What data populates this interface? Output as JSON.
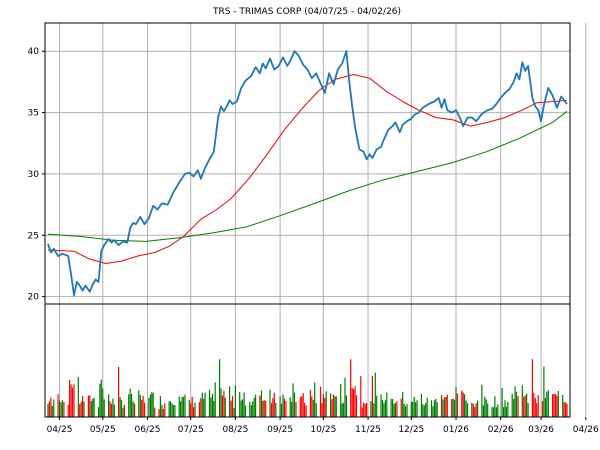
{
  "chart_data": {
    "type": "line",
    "title": "TRS - TRIMAS CORP (04/07/25 - 04/02/26)",
    "price_axis": {
      "ylim": [
        19.4,
        42.3
      ],
      "ticks": [
        20,
        25,
        30,
        35,
        40
      ],
      "tick_labels": [
        "20",
        "25",
        "30",
        "35",
        "40"
      ],
      "grid": true
    },
    "x_ticks": [
      "04/25",
      "05/25",
      "06/25",
      "07/25",
      "08/25",
      "09/25",
      "10/25",
      "11/25",
      "12/25",
      "01/26",
      "02/26",
      "03/26",
      "04/26"
    ],
    "x_tick_dates": [
      "2025-04-15",
      "2025-05-15",
      "2025-06-15",
      "2025-07-15",
      "2025-08-15",
      "2025-09-15",
      "2025-10-15",
      "2025-11-15",
      "2025-12-15",
      "2026-01-15",
      "2026-02-15",
      "2026-03-15",
      "2026-04-15"
    ],
    "date_range": [
      "2025-04-07",
      "2026-04-02"
    ],
    "colors": {
      "price": "#1f77b4",
      "ma_short": "#ff0000",
      "ma_long": "#008000",
      "volume_up": "#008000",
      "volume_down": "#ff0000",
      "grid": "#b0b0b0"
    },
    "series": [
      {
        "key": "price",
        "points": [
          [
            "2025-04-07",
            24.3
          ],
          [
            "2025-04-09",
            23.6
          ],
          [
            "2025-04-11",
            23.9
          ],
          [
            "2025-04-14",
            23.3
          ],
          [
            "2025-04-17",
            23.5
          ],
          [
            "2025-04-21",
            23.3
          ],
          [
            "2025-04-23",
            21.8
          ],
          [
            "2025-04-25",
            20.1
          ],
          [
            "2025-04-27",
            21.2
          ],
          [
            "2025-04-29",
            20.9
          ],
          [
            "2025-05-01",
            20.5
          ],
          [
            "2025-05-03",
            20.9
          ],
          [
            "2025-05-06",
            20.4
          ],
          [
            "2025-05-08",
            21.0
          ],
          [
            "2025-05-10",
            21.4
          ],
          [
            "2025-05-12",
            21.2
          ],
          [
            "2025-05-14",
            23.7
          ],
          [
            "2025-05-16",
            24.2
          ],
          [
            "2025-05-19",
            24.7
          ],
          [
            "2025-05-21",
            24.4
          ],
          [
            "2025-05-23",
            24.6
          ],
          [
            "2025-05-26",
            24.2
          ],
          [
            "2025-05-29",
            24.5
          ],
          [
            "2025-06-01",
            24.4
          ],
          [
            "2025-06-03",
            25.6
          ],
          [
            "2025-06-05",
            26.0
          ],
          [
            "2025-06-07",
            25.9
          ],
          [
            "2025-06-10",
            26.5
          ],
          [
            "2025-06-13",
            25.9
          ],
          [
            "2025-06-16",
            26.4
          ],
          [
            "2025-06-19",
            27.4
          ],
          [
            "2025-06-22",
            27.1
          ],
          [
            "2025-06-25",
            27.6
          ],
          [
            "2025-06-29",
            27.5
          ],
          [
            "2025-07-03",
            28.5
          ],
          [
            "2025-07-07",
            29.3
          ],
          [
            "2025-07-11",
            30.0
          ],
          [
            "2025-07-14",
            30.1
          ],
          [
            "2025-07-17",
            29.8
          ],
          [
            "2025-07-20",
            30.3
          ],
          [
            "2025-07-22",
            29.6
          ],
          [
            "2025-07-25",
            30.5
          ],
          [
            "2025-07-28",
            31.2
          ],
          [
            "2025-07-31",
            31.8
          ],
          [
            "2025-08-03",
            34.6
          ],
          [
            "2025-08-05",
            35.5
          ],
          [
            "2025-08-07",
            35.1
          ],
          [
            "2025-08-09",
            35.5
          ],
          [
            "2025-08-11",
            36.0
          ],
          [
            "2025-08-13",
            35.7
          ],
          [
            "2025-08-16",
            35.9
          ],
          [
            "2025-08-19",
            37.0
          ],
          [
            "2025-08-22",
            37.6
          ],
          [
            "2025-08-26",
            38.0
          ],
          [
            "2025-08-29",
            38.7
          ],
          [
            "2025-09-01",
            38.2
          ],
          [
            "2025-09-03",
            39.0
          ],
          [
            "2025-09-05",
            38.6
          ],
          [
            "2025-09-08",
            39.4
          ],
          [
            "2025-09-11",
            38.5
          ],
          [
            "2025-09-14",
            38.8
          ],
          [
            "2025-09-17",
            39.5
          ],
          [
            "2025-09-20",
            38.8
          ],
          [
            "2025-09-22",
            39.2
          ],
          [
            "2025-09-25",
            40.0
          ],
          [
            "2025-09-28",
            39.6
          ],
          [
            "2025-10-01",
            38.9
          ],
          [
            "2025-10-04",
            38.5
          ],
          [
            "2025-10-07",
            37.8
          ],
          [
            "2025-10-10",
            38.2
          ],
          [
            "2025-10-13",
            37.4
          ],
          [
            "2025-10-16",
            36.6
          ],
          [
            "2025-10-19",
            38.2
          ],
          [
            "2025-10-22",
            37.3
          ],
          [
            "2025-10-25",
            38.5
          ],
          [
            "2025-10-28",
            39.0
          ],
          [
            "2025-10-31",
            40.0
          ],
          [
            "2025-11-02",
            37.5
          ],
          [
            "2025-11-04",
            35.5
          ],
          [
            "2025-11-06",
            33.8
          ],
          [
            "2025-11-09",
            32.0
          ],
          [
            "2025-11-12",
            31.8
          ],
          [
            "2025-11-14",
            31.2
          ],
          [
            "2025-11-16",
            31.6
          ],
          [
            "2025-11-18",
            31.3
          ],
          [
            "2025-11-21",
            32.0
          ],
          [
            "2025-11-24",
            32.2
          ],
          [
            "2025-11-26",
            32.8
          ],
          [
            "2025-11-29",
            33.6
          ],
          [
            "2025-12-02",
            33.9
          ],
          [
            "2025-12-04",
            34.2
          ],
          [
            "2025-12-07",
            33.4
          ],
          [
            "2025-12-09",
            34.0
          ],
          [
            "2025-12-12",
            34.3
          ],
          [
            "2025-12-15",
            34.5
          ],
          [
            "2025-12-17",
            34.8
          ],
          [
            "2025-12-20",
            35.0
          ],
          [
            "2025-12-23",
            35.4
          ],
          [
            "2025-12-27",
            35.7
          ],
          [
            "2025-12-31",
            35.9
          ],
          [
            "2026-01-03",
            36.2
          ],
          [
            "2026-01-05",
            35.4
          ],
          [
            "2026-01-07",
            36.1
          ],
          [
            "2026-01-09",
            35.2
          ],
          [
            "2026-01-12",
            35.0
          ],
          [
            "2026-01-15",
            35.2
          ],
          [
            "2026-01-18",
            34.5
          ],
          [
            "2026-01-20",
            33.9
          ],
          [
            "2026-01-23",
            34.6
          ],
          [
            "2026-01-26",
            34.6
          ],
          [
            "2026-01-29",
            34.3
          ],
          [
            "2026-02-02",
            34.9
          ],
          [
            "2026-02-06",
            35.2
          ],
          [
            "2026-02-09",
            35.3
          ],
          [
            "2026-02-12",
            35.7
          ],
          [
            "2026-02-15",
            36.2
          ],
          [
            "2026-02-18",
            36.6
          ],
          [
            "2026-02-21",
            36.9
          ],
          [
            "2026-02-24",
            37.5
          ],
          [
            "2026-02-26",
            38.2
          ],
          [
            "2026-02-28",
            37.7
          ],
          [
            "2026-03-02",
            39.1
          ],
          [
            "2026-03-04",
            38.4
          ],
          [
            "2026-03-06",
            38.8
          ],
          [
            "2026-03-09",
            36.2
          ],
          [
            "2026-03-11",
            35.5
          ],
          [
            "2026-03-13",
            35.2
          ],
          [
            "2026-03-15",
            34.3
          ],
          [
            "2026-03-17",
            35.6
          ],
          [
            "2026-03-20",
            37.0
          ],
          [
            "2026-03-23",
            36.4
          ],
          [
            "2026-03-26",
            35.4
          ],
          [
            "2026-03-29",
            36.3
          ],
          [
            "2026-04-02",
            35.7
          ]
        ]
      },
      {
        "key": "ma_short",
        "points": [
          [
            "2025-04-07",
            23.8
          ],
          [
            "2025-04-25",
            23.7
          ],
          [
            "2025-05-05",
            23.1
          ],
          [
            "2025-05-17",
            22.7
          ],
          [
            "2025-05-28",
            22.9
          ],
          [
            "2025-06-08",
            23.3
          ],
          [
            "2025-06-20",
            23.6
          ],
          [
            "2025-06-30",
            24.1
          ],
          [
            "2025-07-10",
            24.9
          ],
          [
            "2025-07-22",
            26.3
          ],
          [
            "2025-08-02",
            27.1
          ],
          [
            "2025-08-12",
            28.0
          ],
          [
            "2025-08-25",
            29.7
          ],
          [
            "2025-09-06",
            31.6
          ],
          [
            "2025-09-18",
            33.6
          ],
          [
            "2025-09-30",
            35.3
          ],
          [
            "2025-10-12",
            36.8
          ],
          [
            "2025-10-23",
            37.7
          ],
          [
            "2025-11-05",
            38.1
          ],
          [
            "2025-11-16",
            37.8
          ],
          [
            "2025-11-28",
            36.7
          ],
          [
            "2025-12-09",
            35.9
          ],
          [
            "2025-12-20",
            35.2
          ],
          [
            "2026-01-01",
            34.6
          ],
          [
            "2026-01-13",
            34.4
          ],
          [
            "2026-01-25",
            33.9
          ],
          [
            "2026-02-06",
            34.2
          ],
          [
            "2026-02-18",
            34.6
          ],
          [
            "2026-03-02",
            35.2
          ],
          [
            "2026-03-12",
            35.8
          ],
          [
            "2026-03-24",
            35.9
          ],
          [
            "2026-04-02",
            36.0
          ]
        ]
      },
      {
        "key": "ma_long",
        "points": [
          [
            "2025-04-07",
            25.1
          ],
          [
            "2025-04-30",
            24.9
          ],
          [
            "2025-05-22",
            24.6
          ],
          [
            "2025-06-14",
            24.5
          ],
          [
            "2025-07-07",
            24.8
          ],
          [
            "2025-07-31",
            25.2
          ],
          [
            "2025-08-23",
            25.7
          ],
          [
            "2025-09-15",
            26.6
          ],
          [
            "2025-10-09",
            27.6
          ],
          [
            "2025-11-01",
            28.6
          ],
          [
            "2025-11-25",
            29.5
          ],
          [
            "2025-12-19",
            30.2
          ],
          [
            "2026-01-12",
            30.9
          ],
          [
            "2026-02-05",
            31.8
          ],
          [
            "2026-02-28",
            32.9
          ],
          [
            "2026-03-23",
            34.2
          ],
          [
            "2026-04-02",
            35.1
          ]
        ]
      }
    ]
  }
}
